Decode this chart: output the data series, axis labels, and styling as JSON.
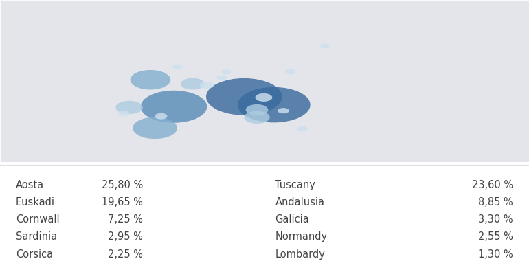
{
  "fig_bg_color": "#ffffff",
  "map_bg_color": "#f0f1f5",
  "land_color": "#e4e5eb",
  "border_color": "#ffffff",
  "ocean_color": "#f5f6fa",
  "bubble_color_dark": "#3a6b9e",
  "bubble_color_mid": "#5a8cb8",
  "bubble_color_light": "#85b0d0",
  "bubble_color_lighter": "#aecce0",
  "bubble_color_lightest": "#cce0ee",
  "table_text_color": "#444444",
  "table_fontsize": 10.5,
  "regions": [
    {
      "name": "Aosta",
      "pct": "25,80 %",
      "value": 25.8,
      "lon": 7.3,
      "lat": 45.7,
      "color_key": "dark"
    },
    {
      "name": "Tuscany",
      "pct": "23,60 %",
      "value": 23.6,
      "lon": 11.25,
      "lat": 43.5,
      "color_key": "dark"
    },
    {
      "name": "Euskadi",
      "pct": "19,65 %",
      "value": 19.65,
      "lon": -2.0,
      "lat": 43.0,
      "color_key": "mid"
    },
    {
      "name": "Andalusia",
      "pct": "8,85 %",
      "value": 8.85,
      "lon": -4.5,
      "lat": 37.2,
      "color_key": "light"
    },
    {
      "name": "Cornwall",
      "pct": "7,25 %",
      "value": 7.25,
      "lon": -5.1,
      "lat": 50.3,
      "color_key": "light"
    },
    {
      "name": "Galicia",
      "pct": "3,30 %",
      "value": 3.3,
      "lon": -7.9,
      "lat": 42.8,
      "color_key": "lighter"
    },
    {
      "name": "Sardinia",
      "pct": "2,95 %",
      "value": 2.95,
      "lon": 9.0,
      "lat": 40.1,
      "color_key": "lighter"
    },
    {
      "name": "Normandy",
      "pct": "2,55 %",
      "value": 2.55,
      "lon": 0.5,
      "lat": 49.2,
      "color_key": "lighter"
    },
    {
      "name": "Corsica",
      "pct": "2,25 %",
      "value": 2.25,
      "lon": 9.0,
      "lat": 42.15,
      "color_key": "lighter"
    },
    {
      "name": "Lombardy",
      "pct": "1,30 %",
      "value": 1.3,
      "lon": 9.9,
      "lat": 45.5,
      "color_key": "lightest"
    }
  ],
  "extra_bubbles": [
    {
      "lon": 2.35,
      "lat": 48.85,
      "value": 0.9,
      "color_key": "lightest"
    },
    {
      "lon": -3.7,
      "lat": 40.4,
      "value": 0.7,
      "color_key": "lightest"
    },
    {
      "lon": 12.5,
      "lat": 41.9,
      "value": 0.6,
      "color_key": "lightest"
    },
    {
      "lon": 4.9,
      "lat": 52.4,
      "value": 0.5,
      "color_key": "lightest"
    },
    {
      "lon": 15.0,
      "lat": 37.0,
      "value": 0.5,
      "color_key": "lightest"
    },
    {
      "lon": -8.6,
      "lat": 41.15,
      "value": 0.6,
      "color_key": "lightest"
    },
    {
      "lon": 18.0,
      "lat": 59.5,
      "value": 0.4,
      "color_key": "lightest"
    },
    {
      "lon": -1.5,
      "lat": 53.8,
      "value": 0.5,
      "color_key": "lightest"
    },
    {
      "lon": 13.4,
      "lat": 52.5,
      "value": 0.5,
      "color_key": "lightest"
    },
    {
      "lon": 4.35,
      "lat": 50.85,
      "value": 0.45,
      "color_key": "lightest"
    }
  ],
  "map_xlim": [
    -25,
    45
  ],
  "map_ylim": [
    28,
    72
  ],
  "bubble_scale": 18,
  "regions_left": [
    {
      "name": "Aosta",
      "pct": "25,80 %"
    },
    {
      "name": "Euskadi",
      "pct": "19,65 %"
    },
    {
      "name": "Cornwall",
      "pct": "7,25 %"
    },
    {
      "name": "Sardinia",
      "pct": "2,95 %"
    },
    {
      "name": "Corsica",
      "pct": "2,25 %"
    }
  ],
  "regions_right": [
    {
      "name": "Tuscany",
      "pct": "23,60 %"
    },
    {
      "name": "Andalusia",
      "pct": "8,85 %"
    },
    {
      "name": "Galicia",
      "pct": "3,30 %"
    },
    {
      "name": "Normandy",
      "pct": "2,55 %"
    },
    {
      "name": "Lombardy",
      "pct": "1,30 %"
    }
  ]
}
